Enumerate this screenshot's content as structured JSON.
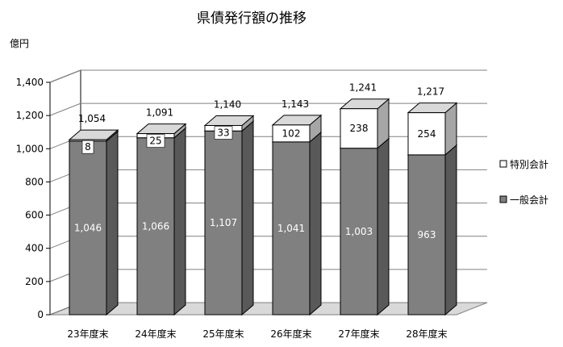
{
  "chart_data": {
    "type": "bar",
    "stacked": true,
    "three_d": true,
    "title": "県債発行額の推移",
    "unit_label": "億円",
    "categories": [
      "23年度末",
      "24年度末",
      "25年度末",
      "26年度末",
      "27年度末",
      "28年度末"
    ],
    "series": [
      {
        "name": "一般会計",
        "values": [
          1046,
          1066,
          1107,
          1041,
          1003,
          963
        ],
        "color": "#808080"
      },
      {
        "name": "特別会計",
        "values": [
          8,
          25,
          33,
          102,
          238,
          254
        ],
        "color": "#ffffff"
      }
    ],
    "totals": [
      1054,
      1091,
      1140,
      1143,
      1241,
      1217
    ],
    "value_labels": {
      "一般会計": [
        "1,046",
        "1,066",
        "1,107",
        "1,041",
        "1,003",
        "963"
      ],
      "特別会計": [
        "8",
        "25",
        "33",
        "102",
        "238",
        "254"
      ],
      "totals": [
        "1,054",
        "1,091",
        "1,140",
        "1,143",
        "1,241",
        "1,217"
      ]
    },
    "y_ticks": [
      "0",
      "200",
      "400",
      "600",
      "800",
      "1,000",
      "1,200",
      "1,400"
    ],
    "ylim": [
      0,
      1400
    ],
    "grid": true,
    "legend_position": "right"
  }
}
